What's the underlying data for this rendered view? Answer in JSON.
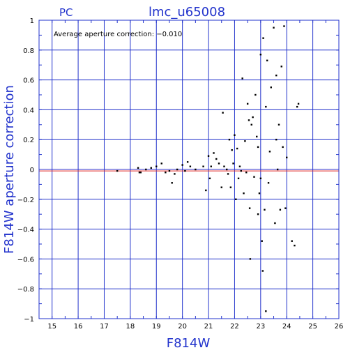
{
  "chart_data": {
    "type": "scatter",
    "detector_label": "PC",
    "title": "lmc_u65008",
    "xlabel": "F814W",
    "ylabel": "F814W aperture correction",
    "annotation": "Average aperture correction: -0.010",
    "xlim": [
      14.5,
      26
    ],
    "ylim": [
      -1,
      1
    ],
    "x_ticks": [
      15,
      16,
      17,
      18,
      19,
      20,
      21,
      22,
      23,
      24,
      25,
      26
    ],
    "y_ticks": [
      -1,
      -0.8,
      -0.6,
      -0.4,
      -0.2,
      0,
      0.2,
      0.4,
      0.6,
      0.8,
      1
    ],
    "x_tick_labels": [
      "15",
      "16",
      "17",
      "18",
      "19",
      "20",
      "21",
      "22",
      "23",
      "24",
      "25",
      "26"
    ],
    "y_tick_labels": [
      "-1",
      "-0.8",
      "-0.6",
      "-0.4",
      "-0.2",
      "0",
      "0.2",
      "0.4",
      "0.6",
      "0.8",
      "1"
    ],
    "grid": true,
    "reference_lines": [
      {
        "y": 0.0,
        "color": "#3333cc"
      },
      {
        "y": -0.01,
        "color": "#dd2222"
      }
    ],
    "point_color": "#000000",
    "grid_color": "#2233cc",
    "axis_color": "#2233cc",
    "points": [
      {
        "x": 17.5,
        "y": -0.01
      },
      {
        "x": 18.3,
        "y": 0.01
      },
      {
        "x": 18.35,
        "y": -0.02
      },
      {
        "x": 18.4,
        "y": -0.02
      },
      {
        "x": 18.6,
        "y": 0.0
      },
      {
        "x": 18.8,
        "y": 0.01
      },
      {
        "x": 19.0,
        "y": 0.02
      },
      {
        "x": 19.2,
        "y": 0.04
      },
      {
        "x": 19.35,
        "y": -0.02
      },
      {
        "x": 19.5,
        "y": -0.01
      },
      {
        "x": 19.6,
        "y": -0.09
      },
      {
        "x": 19.7,
        "y": -0.03
      },
      {
        "x": 19.8,
        "y": 0.0
      },
      {
        "x": 20.0,
        "y": 0.03
      },
      {
        "x": 20.1,
        "y": -0.01
      },
      {
        "x": 20.2,
        "y": 0.05
      },
      {
        "x": 20.3,
        "y": 0.02
      },
      {
        "x": 20.5,
        "y": 0.0
      },
      {
        "x": 20.8,
        "y": 0.02
      },
      {
        "x": 20.9,
        "y": -0.14
      },
      {
        "x": 21.0,
        "y": 0.09
      },
      {
        "x": 21.05,
        "y": -0.06
      },
      {
        "x": 21.1,
        "y": 0.02
      },
      {
        "x": 21.2,
        "y": 0.11
      },
      {
        "x": 21.3,
        "y": 0.07
      },
      {
        "x": 21.4,
        "y": 0.04
      },
      {
        "x": 21.5,
        "y": -0.12
      },
      {
        "x": 21.55,
        "y": 0.38
      },
      {
        "x": 21.6,
        "y": 0.02
      },
      {
        "x": 21.7,
        "y": 0.0
      },
      {
        "x": 21.75,
        "y": -0.03
      },
      {
        "x": 21.8,
        "y": 0.2
      },
      {
        "x": 21.85,
        "y": -0.12
      },
      {
        "x": 21.9,
        "y": 0.13
      },
      {
        "x": 21.95,
        "y": 0.04
      },
      {
        "x": 22.0,
        "y": 0.23
      },
      {
        "x": 22.05,
        "y": -0.2
      },
      {
        "x": 22.1,
        "y": 0.14
      },
      {
        "x": 22.15,
        "y": -0.06
      },
      {
        "x": 22.2,
        "y": 0.02
      },
      {
        "x": 22.25,
        "y": -0.01
      },
      {
        "x": 22.3,
        "y": 0.61
      },
      {
        "x": 22.35,
        "y": -0.16
      },
      {
        "x": 22.4,
        "y": 0.19
      },
      {
        "x": 22.45,
        "y": -0.02
      },
      {
        "x": 22.5,
        "y": 0.44
      },
      {
        "x": 22.55,
        "y": 0.33
      },
      {
        "x": 22.58,
        "y": -0.26
      },
      {
        "x": 22.6,
        "y": -0.6
      },
      {
        "x": 22.65,
        "y": 0.3
      },
      {
        "x": 22.7,
        "y": 0.35
      },
      {
        "x": 22.75,
        "y": -0.05
      },
      {
        "x": 22.8,
        "y": 0.5
      },
      {
        "x": 22.85,
        "y": 0.22
      },
      {
        "x": 22.9,
        "y": 0.15
      },
      {
        "x": 22.95,
        "y": -0.16
      },
      {
        "x": 23.0,
        "y": 0.77
      },
      {
        "x": 23.05,
        "y": -0.48
      },
      {
        "x": 23.08,
        "y": -0.68
      },
      {
        "x": 23.1,
        "y": 0.88
      },
      {
        "x": 23.15,
        "y": -0.27
      },
      {
        "x": 23.2,
        "y": 0.42
      },
      {
        "x": 23.25,
        "y": 0.73
      },
      {
        "x": 23.3,
        "y": -0.09
      },
      {
        "x": 23.35,
        "y": 0.12
      },
      {
        "x": 23.4,
        "y": 0.55
      },
      {
        "x": 23.5,
        "y": 0.95
      },
      {
        "x": 23.55,
        "y": -0.36
      },
      {
        "x": 23.6,
        "y": 0.63
      },
      {
        "x": 23.65,
        "y": 0.0
      },
      {
        "x": 23.7,
        "y": 0.3
      },
      {
        "x": 23.75,
        "y": -0.27
      },
      {
        "x": 23.8,
        "y": 0.69
      },
      {
        "x": 23.85,
        "y": 0.15
      },
      {
        "x": 23.9,
        "y": 0.96
      },
      {
        "x": 23.95,
        "y": -0.26
      },
      {
        "x": 24.0,
        "y": 0.08
      },
      {
        "x": 24.2,
        "y": -0.48
      },
      {
        "x": 24.3,
        "y": -0.51
      },
      {
        "x": 24.4,
        "y": 0.42
      },
      {
        "x": 24.45,
        "y": 0.44
      },
      {
        "x": 23.0,
        "y": -0.06
      },
      {
        "x": 23.2,
        "y": -0.95
      },
      {
        "x": 22.9,
        "y": -0.3
      },
      {
        "x": 23.6,
        "y": 0.2
      }
    ]
  }
}
